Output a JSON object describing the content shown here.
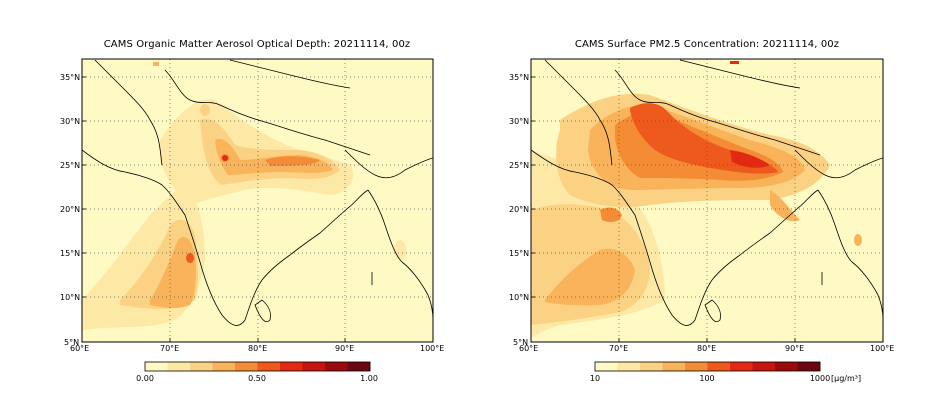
{
  "left_panel": {
    "title": "CAMS Organic Matter Aerosol Optical Depth: 20211114, 00z",
    "colorbar": {
      "labels": [
        "0.00",
        "0.50",
        "1.00"
      ],
      "colors": [
        "#fff9c4",
        "#fde9a5",
        "#fbd283",
        "#f9b35a",
        "#f48c36",
        "#ee5a1d",
        "#e22a12",
        "#c6140f",
        "#9a0b0b",
        "#6d0610"
      ]
    }
  },
  "right_panel": {
    "title": "CAMS Surface PM2.5 Concentration: 20211114, 00z",
    "colorbar": {
      "labels": [
        "10",
        "100",
        "1000"
      ],
      "unit": "[µg/m³]",
      "colors": [
        "#fff9c4",
        "#fde9a5",
        "#fbd283",
        "#f9b35a",
        "#f48c36",
        "#ee5a1d",
        "#e22a12",
        "#c6140f",
        "#9a0b0b",
        "#6d0610"
      ]
    }
  },
  "axes": {
    "lat_labels": [
      "35°N",
      "30°N",
      "25°N",
      "20°N",
      "15°N",
      "10°N",
      "5°N"
    ],
    "lon_labels": [
      "60°E",
      "70°E",
      "80°E",
      "90°E",
      "100°E"
    ]
  },
  "colors": {
    "background_field": "#fff9c4",
    "coast": "#000000",
    "grid": "#555555"
  }
}
